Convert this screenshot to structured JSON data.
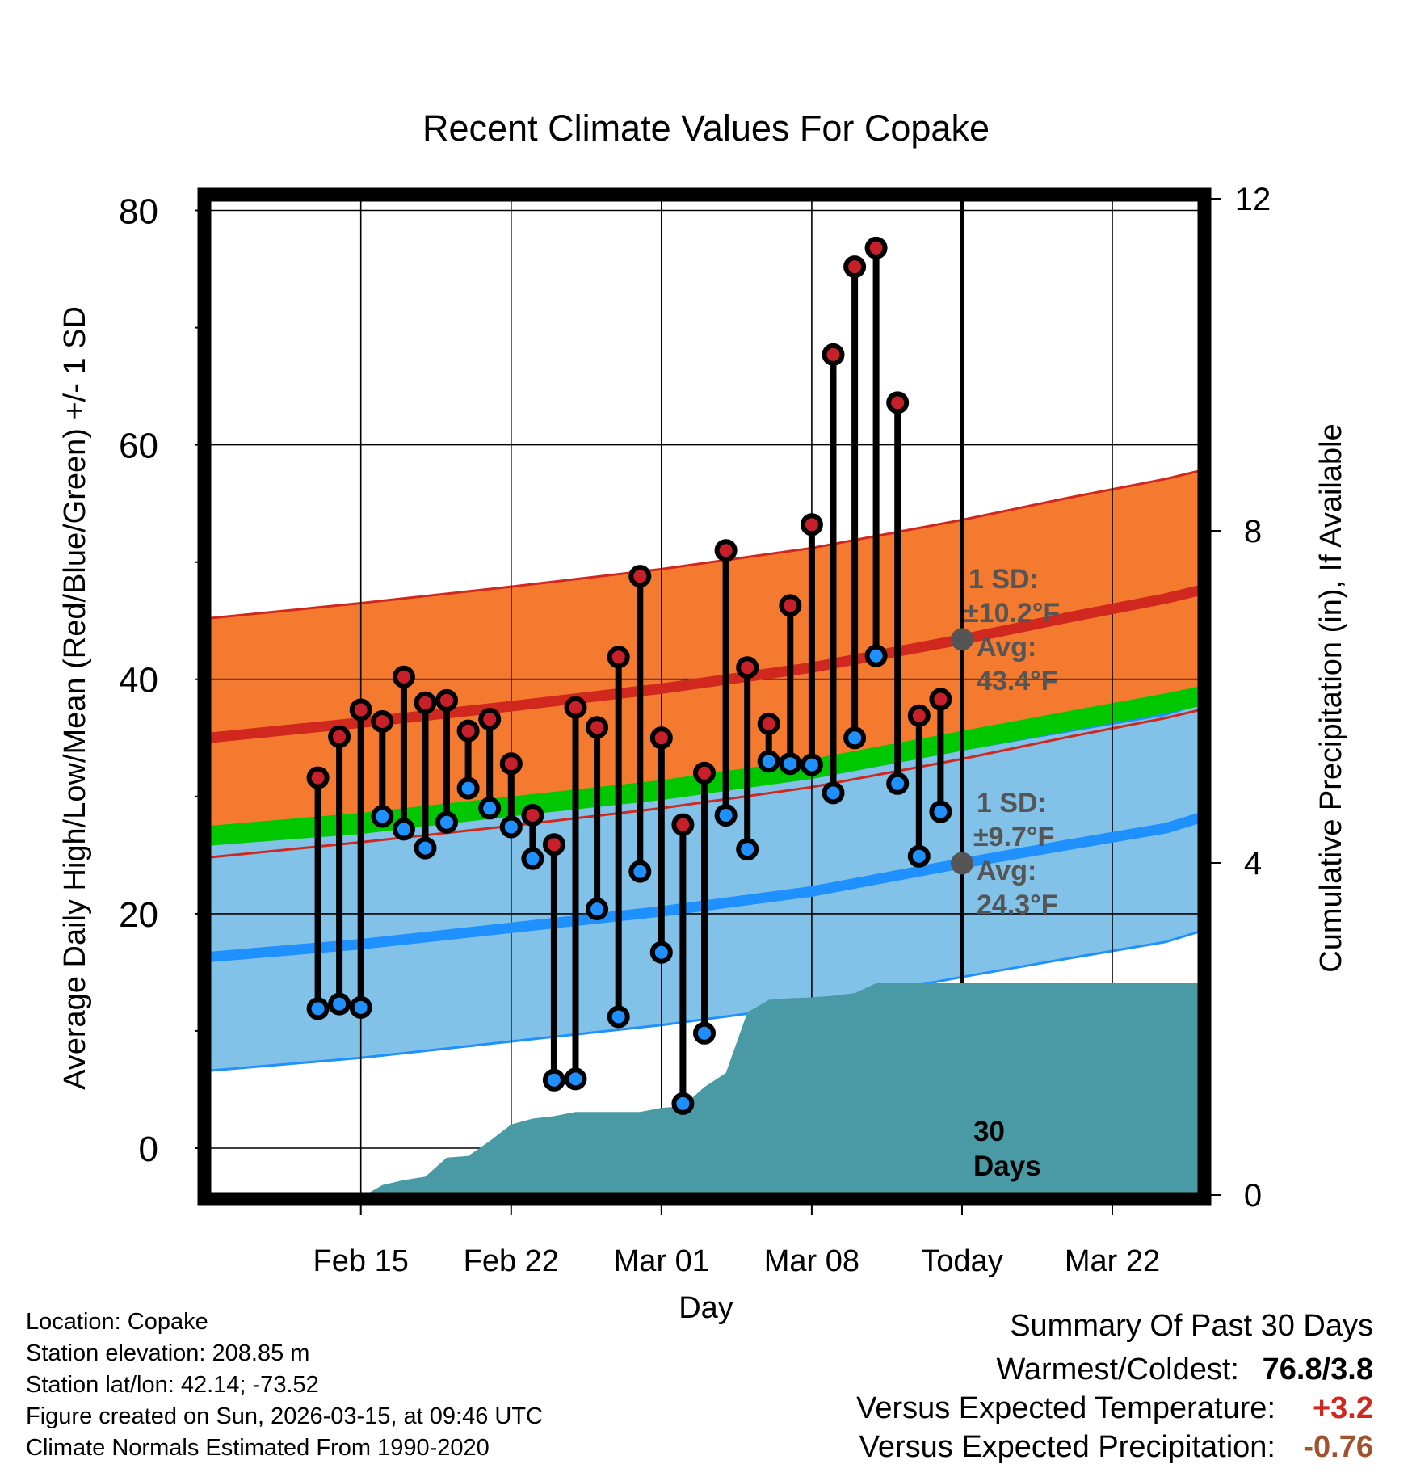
{
  "chart_data": {
    "type": "line",
    "title": "Recent Climate Values For Copake",
    "xlabel": "Day",
    "ylabel": "Average Daily High/Low/Mean (Red/Blue/Green) +/- 1 SD",
    "y2label": "Cumulative Precipitation (in), If Available",
    "x_range_days": [
      -35.1,
      11.1
    ],
    "x_tick_days": [
      -28,
      -21,
      -14,
      -7,
      0,
      7
    ],
    "x_tick_labels": [
      "Feb 15",
      "Feb 22",
      "Mar 01",
      "Mar 08",
      "Today",
      "Mar 22"
    ],
    "ylim": [
      -4,
      81
    ],
    "y_ticks": [
      0,
      20,
      40,
      60,
      80
    ],
    "y_minor_ticks": [
      10,
      30,
      50,
      70
    ],
    "y2lim": [
      0,
      12
    ],
    "y2_ticks": [
      0,
      4,
      8,
      12
    ],
    "y2_tick_labels": [
      "0",
      "4",
      "8",
      "12"
    ],
    "normal_high_mean": [
      [
        -35.1,
        35.0
      ],
      [
        -28,
        36.3
      ],
      [
        -21,
        37.7
      ],
      [
        -14,
        39.2
      ],
      [
        -7,
        41.0
      ],
      [
        0,
        43.4
      ],
      [
        5,
        45.3
      ],
      [
        9.5,
        46.9
      ],
      [
        11.1,
        47.6
      ]
    ],
    "normal_high_sd": 10.2,
    "normal_low_mean": [
      [
        -35.1,
        16.3
      ],
      [
        -28,
        17.4
      ],
      [
        -21,
        18.8
      ],
      [
        -14,
        20.2
      ],
      [
        -7,
        21.9
      ],
      [
        0,
        24.3
      ],
      [
        5,
        25.9
      ],
      [
        9.5,
        27.3
      ],
      [
        11.1,
        28.2
      ]
    ],
    "normal_low_sd": 9.7,
    "normal_mean_band": [
      [
        -35.1,
        25.8,
        27.5
      ],
      [
        -28,
        26.8,
        28.6
      ],
      [
        -21,
        28.3,
        30.0
      ],
      [
        -14,
        29.7,
        31.4
      ],
      [
        -7,
        31.5,
        33.2
      ],
      [
        0,
        33.9,
        35.6
      ],
      [
        5,
        35.6,
        37.3
      ],
      [
        9.5,
        37.1,
        38.8
      ],
      [
        11.1,
        37.7,
        39.4
      ]
    ],
    "daily": [
      {
        "d": -30,
        "high": 31.6,
        "low": 11.9
      },
      {
        "d": -29,
        "high": 35.1,
        "low": 12.3
      },
      {
        "d": -28,
        "high": 37.4,
        "low": 12.0
      },
      {
        "d": -27,
        "high": 36.4,
        "low": 28.3
      },
      {
        "d": -26,
        "high": 40.2,
        "low": 27.2
      },
      {
        "d": -25,
        "high": 38.0,
        "low": 25.6
      },
      {
        "d": -24,
        "high": 38.2,
        "low": 27.8
      },
      {
        "d": -23,
        "high": 35.6,
        "low": 30.7
      },
      {
        "d": -22,
        "high": 36.6,
        "low": 29.0
      },
      {
        "d": -21,
        "high": 32.8,
        "low": 27.4
      },
      {
        "d": -20,
        "high": 28.4,
        "low": 24.7
      },
      {
        "d": -19,
        "high": 25.9,
        "low": 5.8
      },
      {
        "d": -18,
        "high": 37.6,
        "low": 5.9
      },
      {
        "d": -17,
        "high": 35.9,
        "low": 20.4
      },
      {
        "d": -16,
        "high": 41.9,
        "low": 11.2
      },
      {
        "d": -15,
        "high": 48.8,
        "low": 23.6
      },
      {
        "d": -14,
        "high": 35.0,
        "low": 16.7
      },
      {
        "d": -13,
        "high": 27.6,
        "low": 3.8
      },
      {
        "d": -12,
        "high": 32.0,
        "low": 9.8
      },
      {
        "d": -11,
        "high": 51.0,
        "low": 28.4
      },
      {
        "d": -10,
        "high": 41.0,
        "low": 25.5
      },
      {
        "d": -9,
        "high": 36.2,
        "low": 33.0
      },
      {
        "d": -8,
        "high": 46.3,
        "low": 32.8
      },
      {
        "d": -7,
        "high": 53.2,
        "low": 32.7
      },
      {
        "d": -6,
        "high": 67.7,
        "low": 30.3
      },
      {
        "d": -5,
        "high": 75.2,
        "low": 35.0
      },
      {
        "d": -4,
        "high": 76.8,
        "low": 42.0
      },
      {
        "d": -3,
        "high": 63.6,
        "low": 31.1
      },
      {
        "d": -2,
        "high": 36.9,
        "low": 24.9
      },
      {
        "d": -1,
        "high": 38.3,
        "low": 28.7
      }
    ],
    "cumulative_precip": [
      [
        -30.5,
        0
      ],
      [
        -27.8,
        0
      ],
      [
        -27.0,
        0.12
      ],
      [
        -26.0,
        0.18
      ],
      [
        -25.0,
        0.22
      ],
      [
        -24.0,
        0.45
      ],
      [
        -23.0,
        0.47
      ],
      [
        -22.0,
        0.65
      ],
      [
        -21.0,
        0.85
      ],
      [
        -20.0,
        0.92
      ],
      [
        -19.0,
        0.95
      ],
      [
        -18.0,
        1.0
      ],
      [
        -17.0,
        1.0
      ],
      [
        -16.0,
        1.0
      ],
      [
        -15.0,
        1.0
      ],
      [
        -14.0,
        1.05
      ],
      [
        -13.0,
        1.07
      ],
      [
        -12.0,
        1.3
      ],
      [
        -11.0,
        1.47
      ],
      [
        -10.0,
        2.2
      ],
      [
        -9.0,
        2.35
      ],
      [
        -8.0,
        2.37
      ],
      [
        -7.0,
        2.38
      ],
      [
        -6.0,
        2.4
      ],
      [
        -5.0,
        2.43
      ],
      [
        -4.0,
        2.55
      ],
      [
        -3.0,
        2.55
      ],
      [
        -2.0,
        2.55
      ],
      [
        -1.0,
        2.55
      ],
      [
        0,
        2.55
      ],
      [
        11.1,
        2.55
      ]
    ],
    "annotations": {
      "high_sd_label": "1 SD:",
      "high_sd_value": "±10.2°F",
      "high_avg_label": "Avg:",
      "high_avg_value": "43.4°F",
      "low_sd_label": "1 SD:",
      "low_sd_value": "±9.7°F",
      "low_avg_label": "Avg:",
      "low_avg_value": "24.3°F",
      "window_number": "30",
      "window_unit": "Days"
    },
    "colors": {
      "high_band": "#f37a2f",
      "high_line": "#d0281e",
      "low_band": "#82c1e8",
      "low_line": "#1e90ff",
      "mean_band": "#00c800",
      "precip": "#4a9aa5",
      "annotation": "#555555",
      "marker_high": "#c8202a",
      "marker_low": "#1e90ff"
    }
  },
  "footer": {
    "location": "Location: Copake",
    "elevation": "Station elevation: 208.85 m",
    "latlon": "Station lat/lon: 42.14; -73.52",
    "created": "Figure created on Sun, 2026-03-15, at 09:46 UTC",
    "normals": "Climate Normals Estimated From 1990-2020"
  },
  "summary": {
    "title": "Summary Of Past 30 Days",
    "warmest_label": "Warmest/Coldest:",
    "warmest_value": "76.8/3.8",
    "temp_label": "Versus Expected Temperature:",
    "temp_value": "+3.2",
    "temp_color": "#d0281e",
    "precip_label": "Versus Expected Precipitation:",
    "precip_value": "-0.76",
    "precip_color": "#a0522d"
  }
}
